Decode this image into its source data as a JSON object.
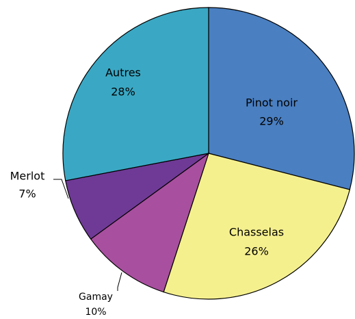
{
  "chart_data": {
    "type": "pie",
    "categories": [
      "Pinot noir",
      "Chasselas",
      "Gamay",
      "Merlot",
      "Autres"
    ],
    "values": [
      29,
      26,
      10,
      7,
      28
    ],
    "value_labels": [
      "29%",
      "26%",
      "10%",
      "7%",
      "28%"
    ],
    "colors": [
      "#4a7fc1",
      "#f5f08e",
      "#a84f9f",
      "#6e3a96",
      "#3aa8c4"
    ]
  }
}
